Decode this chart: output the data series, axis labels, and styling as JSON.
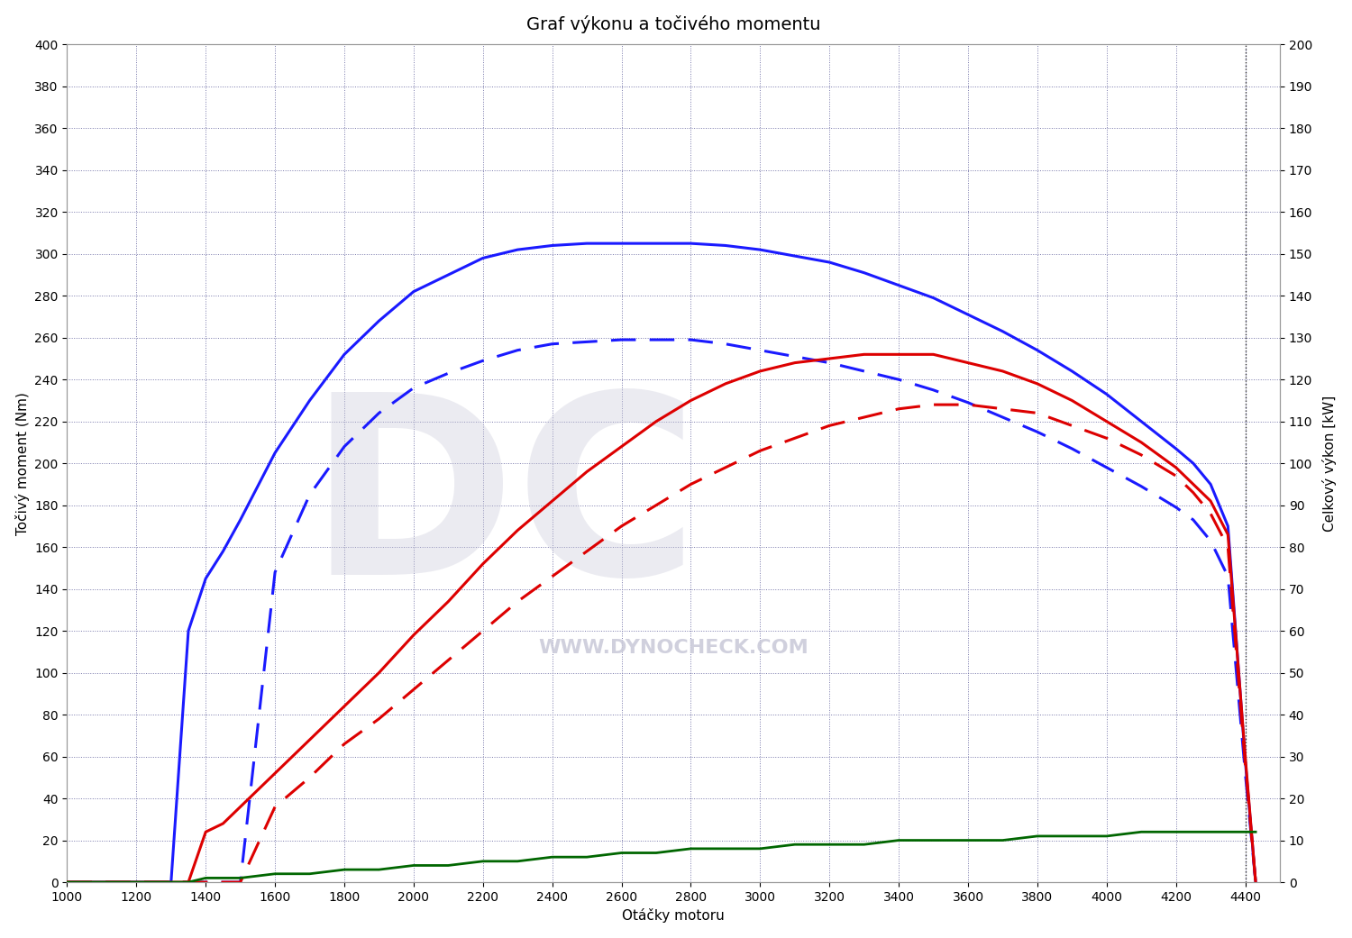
{
  "title": "Graf výkonu a točivého momentu",
  "xlabel": "Otáčky motoru",
  "ylabel_left": "Točivý moment (Nm)",
  "ylabel_right": "Celkový výkon [kW]",
  "ylim_left": [
    0,
    400
  ],
  "ylim_right": [
    0,
    200
  ],
  "xlim": [
    1000,
    4500
  ],
  "background_color": "#ffffff",
  "grid_color": "#7777aa",
  "watermark": "WWW.DYNOCHECK.COM",
  "rpm": [
    1000,
    1100,
    1200,
    1300,
    1350,
    1400,
    1450,
    1500,
    1600,
    1700,
    1800,
    1900,
    2000,
    2100,
    2200,
    2300,
    2400,
    2500,
    2600,
    2700,
    2800,
    2900,
    3000,
    3100,
    3200,
    3300,
    3400,
    3500,
    3600,
    3700,
    3800,
    3900,
    4000,
    4100,
    4200,
    4250,
    4300,
    4350,
    4400,
    4430
  ],
  "torque_tuned": [
    0,
    0,
    0,
    0,
    120,
    145,
    158,
    173,
    205,
    230,
    252,
    268,
    282,
    290,
    298,
    302,
    304,
    305,
    305,
    305,
    305,
    304,
    302,
    299,
    296,
    291,
    285,
    279,
    271,
    263,
    254,
    244,
    233,
    220,
    207,
    200,
    190,
    170,
    58,
    0
  ],
  "torque_stock": [
    0,
    0,
    0,
    0,
    0,
    0,
    0,
    0,
    148,
    185,
    208,
    224,
    236,
    243,
    249,
    254,
    257,
    258,
    259,
    259,
    259,
    257,
    254,
    251,
    248,
    244,
    240,
    235,
    229,
    222,
    215,
    207,
    198,
    189,
    179,
    173,
    163,
    146,
    52,
    0
  ],
  "power_tuned": [
    0,
    0,
    0,
    0,
    0,
    12,
    14,
    18,
    26,
    34,
    42,
    50,
    59,
    67,
    76,
    84,
    91,
    98,
    104,
    110,
    115,
    119,
    122,
    124,
    125,
    126,
    126,
    126,
    124,
    122,
    119,
    115,
    110,
    105,
    99,
    95,
    91,
    83,
    30,
    0
  ],
  "power_stock": [
    0,
    0,
    0,
    0,
    0,
    0,
    0,
    0,
    18,
    25,
    33,
    39,
    46,
    53,
    60,
    67,
    73,
    79,
    85,
    90,
    95,
    99,
    103,
    106,
    109,
    111,
    113,
    114,
    114,
    113,
    112,
    109,
    106,
    102,
    97,
    93,
    88,
    80,
    28,
    0
  ],
  "power_green": [
    0,
    0,
    0,
    0,
    0,
    1,
    1,
    1,
    2,
    2,
    3,
    3,
    4,
    4,
    5,
    5,
    6,
    6,
    7,
    7,
    8,
    8,
    8,
    9,
    9,
    9,
    10,
    10,
    10,
    10,
    11,
    11,
    11,
    12,
    12,
    12,
    12,
    12,
    12,
    12
  ],
  "blue_solid_color": "#1a1aff",
  "blue_dashed_color": "#1a1aff",
  "red_solid_color": "#dd0000",
  "red_dashed_color": "#dd0000",
  "green_solid_color": "#006600",
  "line_width": 2.2,
  "title_fontsize": 14,
  "axis_fontsize": 11,
  "tick_fontsize": 10,
  "watermark_color": "#c8c8d8",
  "watermark_alpha": 0.9,
  "vline_x": 4400
}
